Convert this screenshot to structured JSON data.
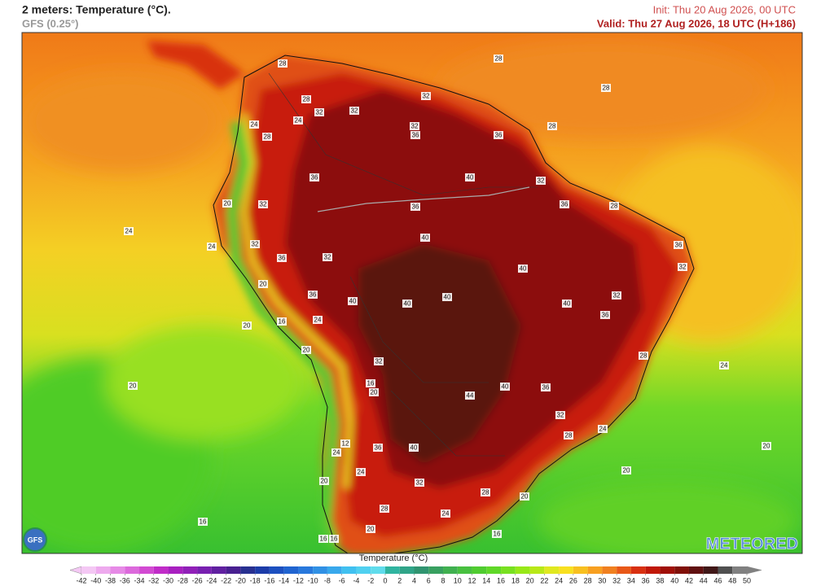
{
  "header": {
    "title": "2 meters: Temperature (°C).",
    "model": "GFS (0.25°)",
    "init": "Init: Thu 20 Aug 2026, 00 UTC",
    "valid": "Valid: Thu 27 Aug 2026, 18 UTC (H+186)"
  },
  "colorbar": {
    "label": "Temperature (°C)",
    "ticks": [
      -42,
      -40,
      -38,
      -36,
      -34,
      -32,
      -30,
      -28,
      -26,
      -24,
      -22,
      -20,
      -18,
      -16,
      -14,
      -12,
      -10,
      -8,
      -6,
      -4,
      -2,
      0,
      2,
      4,
      6,
      8,
      10,
      12,
      14,
      16,
      18,
      20,
      22,
      24,
      26,
      28,
      30,
      32,
      34,
      36,
      38,
      40,
      42,
      44,
      46,
      48,
      50
    ],
    "colors": [
      "#f4c8f4",
      "#eeaaee",
      "#e68ae6",
      "#dc6adc",
      "#d24ad2",
      "#c02cc8",
      "#a820c0",
      "#9020b8",
      "#7820b0",
      "#6020a0",
      "#482090",
      "#283090",
      "#1c3ca8",
      "#1c50c0",
      "#2064d0",
      "#2878dc",
      "#3090e4",
      "#38a8ec",
      "#40c0f0",
      "#50d0f0",
      "#60dcec",
      "#30b4a0",
      "#30a488",
      "#309470",
      "#38a060",
      "#40b050",
      "#48c040",
      "#50cc30",
      "#60d828",
      "#78e020",
      "#98e818",
      "#b8e818",
      "#e0e820",
      "#f8e020",
      "#f8c020",
      "#f8a020",
      "#f08020",
      "#e85818",
      "#d83010",
      "#c01808",
      "#a01008",
      "#801008",
      "#601010",
      "#401818",
      "#505050",
      "#808080"
    ]
  },
  "map": {
    "contour_labels": [
      28,
      28,
      28,
      28,
      32,
      32,
      32,
      32,
      28,
      24,
      24,
      36,
      36,
      28,
      36,
      40,
      32,
      32,
      20,
      36,
      28,
      36,
      24,
      40,
      32,
      24,
      36,
      36,
      32,
      32,
      40,
      20,
      36,
      40,
      40,
      40,
      32,
      40,
      20,
      24,
      36,
      16,
      28,
      32,
      20,
      20,
      16,
      24,
      40,
      36,
      20,
      44,
      32,
      24,
      28,
      36,
      40,
      12,
      24,
      20,
      20,
      24,
      32,
      28,
      20,
      20,
      28,
      24,
      16,
      16,
      20,
      16,
      16
    ]
  },
  "logos": {
    "left": "GFS",
    "right": "METEORED"
  }
}
